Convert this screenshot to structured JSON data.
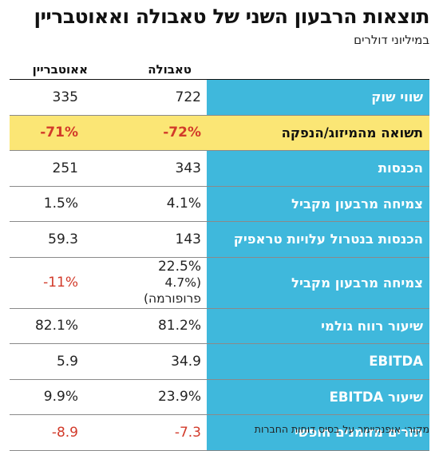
{
  "title": "תוצאות הרבעון השני של טאבולה ואאוטבריין",
  "subtitle": "במיליוני דולרים",
  "columns": {
    "c1": "טאבולה",
    "c2": "אאוטבריין"
  },
  "rows": [
    {
      "label": "שווי שוק",
      "taboola": "722",
      "outbrain": "335"
    },
    {
      "label": "תשואה מהמיזוג/הנפקה",
      "taboola": "-72%",
      "outbrain": "-71%"
    },
    {
      "label": "הכנסות",
      "taboola": "343",
      "outbrain": "251"
    },
    {
      "label": "צמיחה מרבעון מקביל",
      "taboola": "4.1%",
      "outbrain": "1.5%"
    },
    {
      "label": "הכנסות בנטרול עלויות טראפיק",
      "taboola": "143",
      "outbrain": "59.3"
    },
    {
      "label": "צמיחה מרבעון מקביל",
      "taboola": "22.5%",
      "taboola_note": "(4.7% פרופורמה)",
      "outbrain": "-11%"
    },
    {
      "label": "שיעור רווח גולמי",
      "taboola": "81.2%",
      "outbrain": "82.1%"
    },
    {
      "label": "EBITDA",
      "taboola": "34.9",
      "outbrain": "5.9"
    },
    {
      "label": "שיעור EBITDA",
      "taboola": "23.9%",
      "outbrain": "9.9%"
    },
    {
      "label": "תזרים מזומנים חופשי",
      "taboola": "-7.3",
      "outbrain": "-8.9"
    }
  ],
  "source": "מקור: אופנהיימר על בסיס דוחות החברות",
  "colors": {
    "label_bg": "#3fb8dc",
    "highlight_bg": "#fbe675",
    "negative": "#d23a2a"
  }
}
